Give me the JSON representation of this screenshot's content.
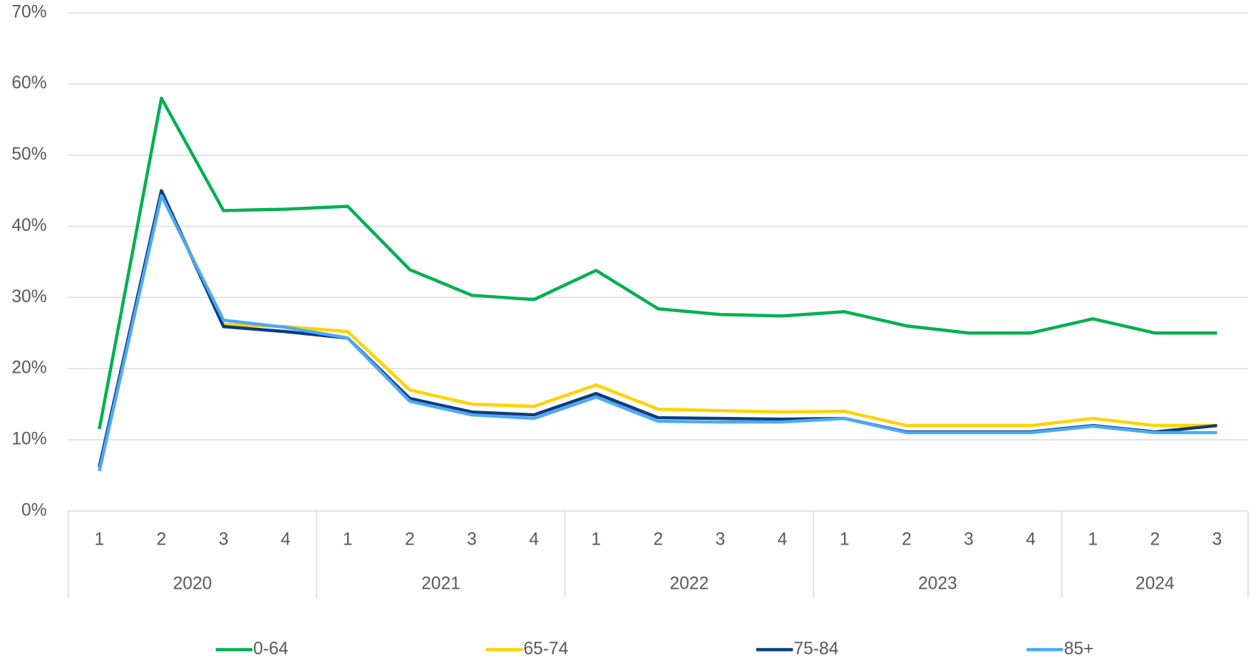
{
  "chart_data": {
    "type": "line",
    "groups": [
      {
        "name": "2020",
        "categories": [
          "1",
          "2",
          "3",
          "4"
        ]
      },
      {
        "name": "2021",
        "categories": [
          "1",
          "2",
          "3",
          "4"
        ]
      },
      {
        "name": "2022",
        "categories": [
          "1",
          "2",
          "3",
          "4"
        ]
      },
      {
        "name": "2023",
        "categories": [
          "1",
          "2",
          "3",
          "4"
        ]
      },
      {
        "name": "2024",
        "categories": [
          "1",
          "2",
          "3"
        ]
      }
    ],
    "ylim": [
      0,
      70
    ],
    "yticks": [
      {
        "value": 0,
        "label": "0%"
      },
      {
        "value": 10,
        "label": "10%"
      },
      {
        "value": 20,
        "label": "20%"
      },
      {
        "value": 30,
        "label": "30%"
      },
      {
        "value": 40,
        "label": "40%"
      },
      {
        "value": 50,
        "label": "50%"
      },
      {
        "value": 60,
        "label": "60%"
      },
      {
        "value": 70,
        "label": "70%"
      }
    ],
    "grid": true,
    "legend": "bottom",
    "series": [
      {
        "name": "0-64",
        "color": "#00b050",
        "values": [
          11.5,
          58,
          42.2,
          42.4,
          42.8,
          33.9,
          30.3,
          29.7,
          33.8,
          28.4,
          27.6,
          27.4,
          28,
          26,
          25,
          25,
          27,
          25,
          25
        ]
      },
      {
        "name": "65-74",
        "color": "#ffd200",
        "values": [
          6,
          45,
          26.2,
          25.9,
          25.2,
          17,
          15,
          14.7,
          17.7,
          14.3,
          14.1,
          13.9,
          14,
          12,
          12,
          12,
          13,
          12,
          12
        ]
      },
      {
        "name": "75-84",
        "color": "#0b3d7e",
        "values": [
          6.2,
          45,
          25.9,
          25.2,
          24.3,
          15.8,
          13.9,
          13.5,
          16.5,
          13.1,
          13,
          12.9,
          13,
          11.1,
          11.1,
          11.1,
          12,
          11.1,
          12
        ]
      },
      {
        "name": "85+",
        "color": "#4da8f5",
        "values": [
          5.6,
          44.3,
          26.8,
          25.8,
          24.3,
          15.4,
          13.5,
          13,
          16,
          12.6,
          12.5,
          12.5,
          13,
          11,
          11,
          11,
          11.9,
          11,
          11
        ]
      }
    ]
  }
}
